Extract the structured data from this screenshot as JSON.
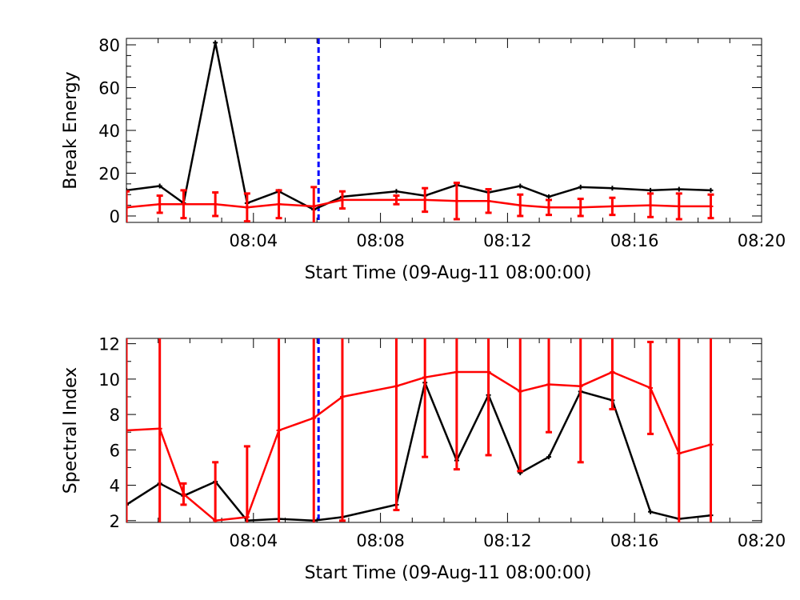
{
  "chart_data": [
    {
      "type": "line",
      "ylabel": "Break Energy",
      "xlabel": "Start Time (09-Aug-11 08:00:00)",
      "x_ticks": [
        "08:04",
        "08:08",
        "08:12",
        "08:16",
        "08:20"
      ],
      "y_ticks": [
        "0",
        "20",
        "40",
        "60",
        "80"
      ],
      "xlim_minutes": [
        0,
        20
      ],
      "ylim": [
        -3,
        83
      ],
      "vline_minutes": 6.05,
      "vline_color": "#0000ff",
      "grid": false,
      "series": [
        {
          "color": "#000000",
          "x": [
            0.0,
            1.05,
            1.8,
            2.8,
            3.8,
            4.8,
            5.9,
            6.8,
            8.5,
            9.4,
            10.4,
            11.4,
            12.4,
            13.3,
            14.3,
            15.3,
            16.5,
            17.4,
            18.4
          ],
          "y": [
            12.0,
            14.0,
            6.0,
            81.0,
            6.0,
            11.5,
            3.0,
            9.0,
            11.5,
            9.5,
            14.5,
            11.0,
            14.0,
            9.0,
            13.5,
            13.0,
            12.0,
            12.5,
            12.0
          ]
        },
        {
          "color": "#ff0000",
          "x": [
            0.0,
            1.05,
            1.8,
            2.8,
            3.8,
            4.8,
            5.9,
            6.8,
            8.5,
            9.4,
            10.4,
            11.4,
            12.4,
            13.3,
            14.3,
            15.3,
            16.5,
            17.4,
            18.4
          ],
          "y": [
            4.0,
            5.5,
            5.5,
            5.5,
            4.0,
            5.5,
            4.5,
            7.5,
            7.5,
            7.5,
            7.0,
            7.0,
            5.0,
            4.0,
            4.0,
            4.5,
            5.0,
            4.5,
            4.5
          ],
          "err": [
            7.5,
            4.0,
            6.5,
            5.5,
            6.5,
            6.5,
            9.0,
            4.0,
            2.0,
            5.5,
            8.5,
            5.5,
            5.0,
            3.5,
            4.0,
            4.0,
            5.5,
            6.0,
            5.5
          ]
        }
      ]
    },
    {
      "type": "line",
      "ylabel": "Spectral Index",
      "xlabel": "Start Time (09-Aug-11 08:00:00)",
      "x_ticks": [
        "08:04",
        "08:08",
        "08:12",
        "08:16",
        "08:20"
      ],
      "y_ticks": [
        "2",
        "4",
        "6",
        "8",
        "10",
        "12"
      ],
      "xlim_minutes": [
        0,
        20
      ],
      "ylim": [
        1.9,
        12.3
      ],
      "vline_minutes": 6.05,
      "vline_color": "#0000ff",
      "grid": false,
      "series": [
        {
          "color": "#000000",
          "x": [
            0.0,
            1.05,
            1.8,
            2.8,
            3.8,
            4.8,
            5.9,
            6.8,
            8.5,
            9.4,
            10.4,
            11.4,
            12.4,
            13.3,
            14.3,
            15.3,
            16.5,
            17.4,
            18.4
          ],
          "y": [
            2.9,
            4.1,
            3.4,
            4.2,
            2.0,
            2.1,
            2.0,
            2.2,
            2.9,
            9.8,
            5.4,
            9.1,
            4.7,
            5.6,
            9.3,
            8.8,
            2.5,
            2.1,
            2.3
          ]
        },
        {
          "color": "#ff0000",
          "x": [
            0.0,
            1.05,
            1.8,
            2.8,
            3.8,
            4.8,
            5.9,
            6.8,
            8.5,
            9.4,
            10.4,
            11.4,
            12.4,
            13.3,
            14.3,
            15.3,
            16.5,
            17.4,
            18.4
          ],
          "y": [
            7.1,
            7.2,
            3.5,
            2.0,
            2.2,
            7.1,
            7.8,
            9.0,
            9.6,
            10.1,
            10.4,
            10.4,
            9.3,
            9.7,
            9.6,
            10.4,
            9.5,
            5.8,
            6.3
          ],
          "err": [
            7.0,
            7.0,
            0.6,
            3.3,
            4.0,
            7.0,
            7.0,
            7.0,
            7.0,
            4.5,
            5.5,
            4.7,
            4.5,
            2.7,
            4.3,
            2.1,
            2.6,
            7.0,
            7.0
          ]
        }
      ]
    }
  ]
}
